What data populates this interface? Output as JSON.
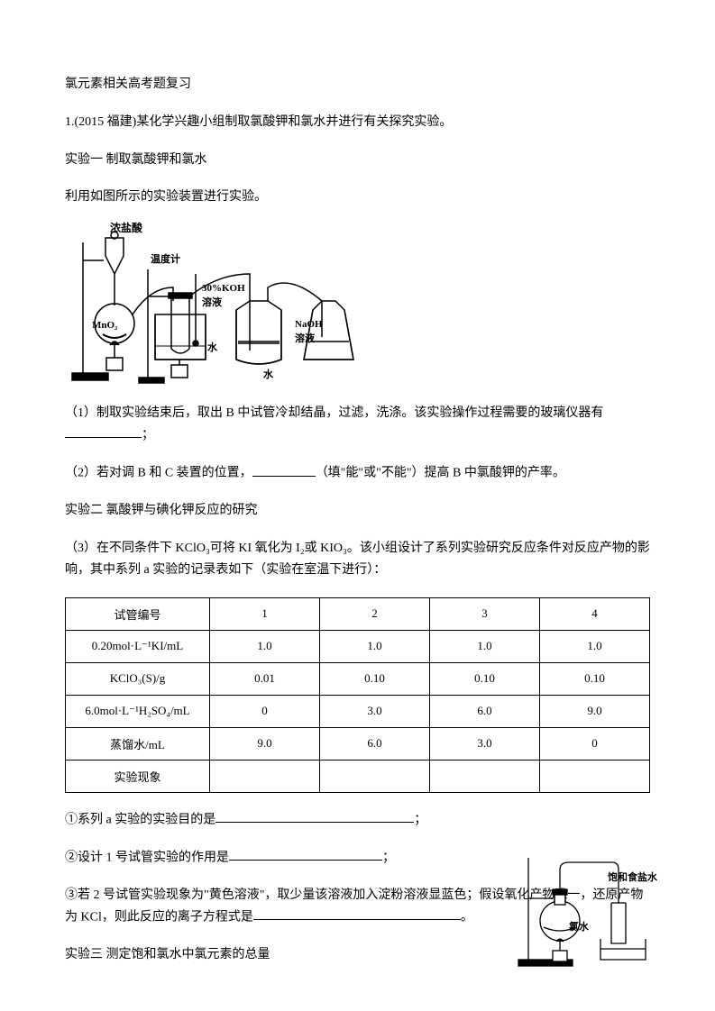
{
  "title": "氯元素相关高考题复习",
  "q1_intro": "1.(2015 福建)某化学兴趣小组制取氯酸钾和氯水并进行有关探究实验。",
  "exp1_title": "实验一  制取氯酸钾和氯水",
  "exp1_desc": "利用如图所示的实验装置进行实验。",
  "diagram1_labels": {
    "hcl": "浓盐酸",
    "thermo": "温度计",
    "koh": "30%KOH",
    "solution": "溶液",
    "water": "水",
    "naoh": "NaOH",
    "mno2": "MnO₂"
  },
  "q1_1_a": "（1）制取实验结束后，取出 B 中试管冷却结晶，过滤，洗涤。该实验操作过程需要的玻璃仪器有",
  "q1_1_b": "；",
  "q1_2_a": "（2）若对调 B 和 C 装置的位置，",
  "q1_2_b": "（填\"能\"或\"不能\"）提高 B 中氯酸钾的产率。",
  "exp2_title": "实验二  氯酸钾与碘化钾反应的研究",
  "q1_3": "（3）在不同条件下 KClO₃可将 KI 氧化为 I₂或 KIO₃。该小组设计了系列实验研究反应条件对反应产物的影响，其中系列 a 实验的记录表如下（实验在室温下进行）：",
  "table": {
    "rows": [
      {
        "label": "试管编号",
        "cells": [
          "1",
          "2",
          "3",
          "4"
        ]
      },
      {
        "label": "0.20mol·L⁻¹KI/mL",
        "cells": [
          "1.0",
          "1.0",
          "1.0",
          "1.0"
        ]
      },
      {
        "label": "KClO₃(S)/g",
        "cells": [
          "0.01",
          "0.10",
          "0.10",
          "0.10"
        ]
      },
      {
        "label": "6.0mol·L⁻¹H₂SO₄/mL",
        "cells": [
          "0",
          "3.0",
          "6.0",
          "9.0"
        ]
      },
      {
        "label": "蒸馏水/mL",
        "cells": [
          "9.0",
          "6.0",
          "3.0",
          "0"
        ]
      },
      {
        "label": "实验现象",
        "cells": [
          "",
          "",
          "",
          ""
        ]
      }
    ]
  },
  "q1_3_1_a": "①系列 a 实验的实验目的是",
  "q1_3_1_b": "；",
  "q1_3_2_a": "②设计 1 号试管实验的作用是",
  "q1_3_2_b": "；",
  "q1_3_3_a": "③若 2 号试管实验现象为\"黄色溶液\"，取少量该溶液加入淀粉溶液显蓝色；假设氧化产物唯一，还原产物为 KCl，则此反应的离子方程式是",
  "q1_3_3_b": "。",
  "exp3_title": "实验三  测定饱和氯水中氯元素的总量",
  "diagram2_labels": {
    "brine": "饱和食盐水",
    "cl2water": "氯水"
  },
  "colors": {
    "text": "#000000",
    "bg": "#ffffff",
    "line": "#000000"
  }
}
